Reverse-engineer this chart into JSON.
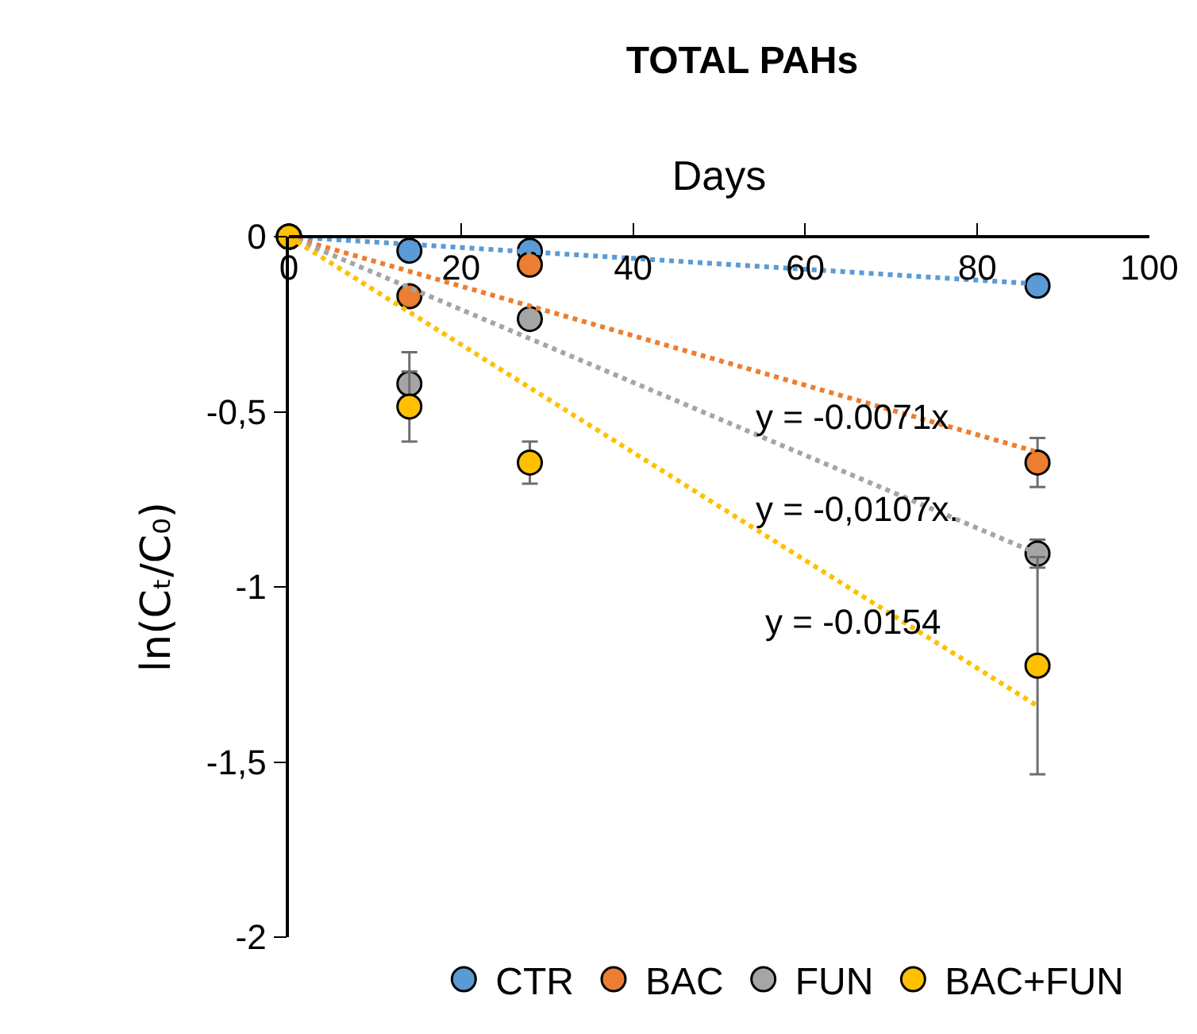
{
  "chart_data": {
    "type": "scatter",
    "title": "TOTAL PAHs",
    "xlabel": "Days",
    "ylabel": "ln(Cₜ/C₀)",
    "x": [
      0,
      14,
      28,
      87
    ],
    "series": [
      {
        "name": "CTR",
        "color": "#5b9bd5",
        "values": [
          0,
          -0.04,
          -0.04,
          -0.14
        ]
      },
      {
        "name": "BAC",
        "color": "#ed7d31",
        "values": [
          0,
          -0.17,
          -0.08,
          -0.645
        ],
        "errors": [
          null,
          null,
          null,
          0.07
        ]
      },
      {
        "name": "FUN",
        "color": "#a5a5a5",
        "values": [
          0,
          -0.42,
          -0.235,
          -0.905
        ],
        "errors": [
          null,
          0.09,
          null,
          0.04
        ]
      },
      {
        "name": "BAC+FUN",
        "color": "#ffc000",
        "values": [
          0,
          -0.485,
          -0.645,
          -1.225
        ],
        "errors": [
          null,
          0.1,
          0.06,
          0.31
        ]
      },
      {
        "type": "line",
        "color": "#5b9bd5",
        "values": [
          0,
          null,
          null,
          -0.135
        ],
        "line_style": "dotted",
        "marker": "none"
      },
      {
        "type": "line",
        "color": "#ed7d31",
        "values": [
          0,
          null,
          null,
          -0.615
        ],
        "line_style": "dotted",
        "marker": "none"
      },
      {
        "type": "line",
        "color": "#a5a5a5",
        "values": [
          0,
          null,
          null,
          -0.905
        ],
        "line_style": "dotted",
        "marker": "none"
      },
      {
        "type": "line",
        "color": "#ffc000",
        "values": [
          0,
          null,
          null,
          -1.34
        ],
        "line_style": "dotted",
        "marker": "none"
      }
    ],
    "annotations": [
      "y = -0.0071x",
      "y = -0,0107x.",
      "y = -0.0154"
    ],
    "xlim": [
      0,
      100
    ],
    "xticks": [
      0,
      20,
      40,
      60,
      80,
      100
    ],
    "ylim": [
      -2,
      0
    ],
    "yticks": [
      0,
      {
        "value": -0.5,
        "label": "-0,5"
      },
      -1,
      {
        "value": -1.5,
        "label": "-1,5"
      },
      -2
    ],
    "marker": "circle",
    "legend": "bottom"
  }
}
